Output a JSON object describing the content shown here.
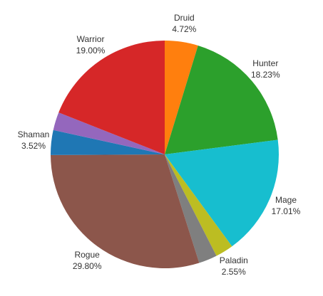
{
  "chart_data": {
    "type": "pie",
    "categories": [
      "Druid",
      "Hunter",
      "Mage",
      "Paladin",
      null,
      "Rogue",
      "Shaman",
      null,
      "Warrior"
    ],
    "values": [
      4.72,
      18.23,
      17.01,
      2.55,
      2.6,
      29.8,
      3.52,
      2.57,
      19.0
    ],
    "value_labels": [
      "4.72%",
      "18.23%",
      "17.01%",
      "2.55%",
      null,
      "29.80%",
      "3.52%",
      null,
      "19.00%"
    ],
    "colors": [
      "#ff7f0e",
      "#2ca02c",
      "#17becf",
      "#bcbd22",
      "#7f7f7f",
      "#8c564b",
      "#1f77b4",
      "#9467bd",
      "#d62728"
    ]
  }
}
